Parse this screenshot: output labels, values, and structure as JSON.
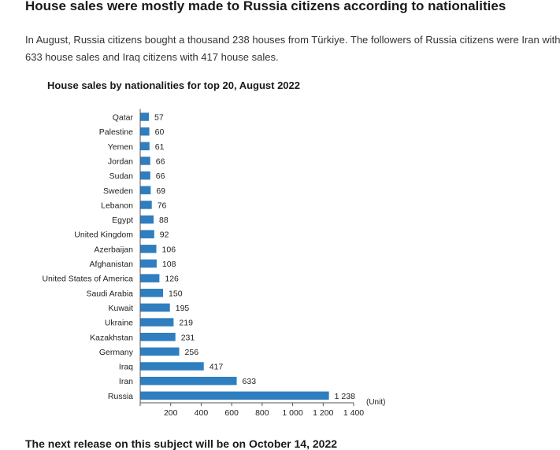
{
  "page": {
    "heading": "House sales were mostly made to Russia citizens according to nationalities",
    "paragraph": "In August, Russia citizens bought a thousand 238 houses from Türkiye. The followers of Russia citizens were Iran with 633 house sales and Iraq citizens with 417 house sales.",
    "footer": "The next release on this subject will be on October 14, 2022"
  },
  "colors": {
    "bar": "#2f7ebf",
    "axis": "#555555",
    "text": "#222222"
  },
  "chart_data": {
    "type": "bar",
    "orientation": "horizontal",
    "title": "House sales by nationalities for top 20, August 2022",
    "unit_label": "(Unit)",
    "categories": [
      "Qatar",
      "Palestine",
      "Yemen",
      "Jordan",
      "Sudan",
      "Sweden",
      "Lebanon",
      "Egypt",
      "United Kingdom",
      "Azerbaijan",
      "Afghanistan",
      "United States of America",
      "Saudi Arabia",
      "Kuwait",
      "Ukraine",
      "Kazakhstan",
      "Germany",
      "Iraq",
      "Iran",
      "Russia"
    ],
    "values": [
      57,
      60,
      61,
      66,
      66,
      69,
      76,
      88,
      92,
      106,
      108,
      126,
      150,
      195,
      219,
      231,
      256,
      417,
      633,
      1238
    ],
    "value_labels": [
      "57",
      "60",
      "61",
      "66",
      "66",
      "69",
      "76",
      "88",
      "92",
      "106",
      "108",
      "126",
      "150",
      "195",
      "219",
      "231",
      "256",
      "417",
      "633",
      "1 238"
    ],
    "x_ticks": [
      200,
      400,
      600,
      800,
      1000,
      1200,
      1400
    ],
    "x_tick_labels": [
      "200",
      "400",
      "600",
      "800",
      "1 000",
      "1 200",
      "1 400"
    ],
    "xlim": [
      0,
      1400
    ],
    "grid": false,
    "legend": "none"
  }
}
